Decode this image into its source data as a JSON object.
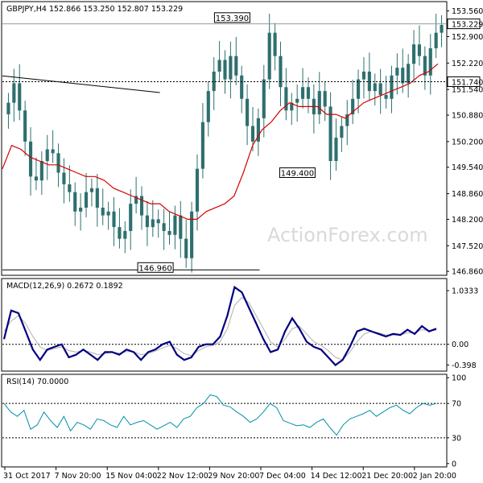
{
  "chart_data": [
    {
      "type": "candlestick",
      "panel": "price",
      "header": "GBPJPY,H4  152.866 153.250 152.807 153.229",
      "watermark": "ActionForex.com",
      "y_ticks": [
        "153.560",
        "152.900",
        "152.220",
        "151.540",
        "150.880",
        "150.200",
        "149.540",
        "148.860",
        "148.200",
        "147.520",
        "146.860"
      ],
      "y_tick_values": [
        153.56,
        152.9,
        152.22,
        151.54,
        150.88,
        150.2,
        149.54,
        148.86,
        148.2,
        147.52,
        146.86
      ],
      "ylim": [
        146.78,
        153.78
      ],
      "current_price": {
        "label": "153.229",
        "value": 153.229
      },
      "level_line": {
        "label": "151.740",
        "value": 151.74
      },
      "annotations": [
        {
          "label": "153.390",
          "value": 153.39,
          "x_frac": 0.518
        },
        {
          "label": "149.400",
          "value": 149.4,
          "x_frac": 0.665
        },
        {
          "label": "146.960",
          "value": 146.96,
          "x_frac": 0.345
        }
      ],
      "trendline": {
        "start": {
          "x_frac": 0.0,
          "value": 151.89
        },
        "end": {
          "x_frac": 0.355,
          "value": 151.46
        }
      },
      "support_line": {
        "value": 146.9,
        "x_frac_start": 0.0,
        "x_frac_end": 0.58
      },
      "close_series": [
        151.2,
        151.7,
        151.0,
        150.2,
        149.3,
        149.2,
        149.7,
        150.0,
        149.9,
        149.4,
        149.1,
        148.9,
        148.4,
        148.5,
        148.9,
        149.0,
        148.5,
        148.3,
        148.4,
        148.0,
        147.7,
        147.9,
        148.6,
        148.8,
        148.3,
        148.0,
        148.2,
        148.1,
        147.9,
        147.8,
        148.3,
        147.7,
        147.2,
        148.4,
        149.5,
        150.7,
        151.5,
        152.0,
        152.3,
        151.8,
        152.4,
        151.9,
        151.3,
        150.6,
        150.2,
        150.8,
        151.8,
        153.0,
        152.4,
        151.6,
        151.0,
        151.2,
        151.3,
        151.6,
        151.3,
        150.9,
        151.5,
        151.1,
        149.7,
        150.3,
        150.6,
        150.9,
        151.3,
        151.8,
        152.0,
        151.5,
        151.7,
        151.4,
        151.3,
        151.9,
        152.1,
        151.7,
        152.2,
        152.7,
        152.4,
        151.9,
        152.6,
        153.0,
        153.2
      ],
      "ma_series": [
        149.5,
        150.1,
        150.0,
        149.8,
        149.7,
        149.6,
        149.6,
        149.5,
        149.4,
        149.3,
        149.3,
        149.2,
        149.0,
        148.9,
        148.8,
        148.7,
        148.6,
        148.6,
        148.4,
        148.3,
        148.2,
        148.2,
        148.4,
        148.5,
        148.6,
        148.8,
        149.4,
        150.1,
        150.5,
        150.7,
        151.0,
        151.2,
        151.1,
        151.1,
        151.1,
        150.9,
        150.9,
        150.8,
        151.0,
        151.2,
        151.3,
        151.4,
        151.5,
        151.6,
        151.7,
        151.9,
        152.0,
        152.2
      ],
      "ma_color": "#d40000",
      "candle_color": "#2f6f6f"
    },
    {
      "type": "line",
      "panel": "macd",
      "header": "MACD(12,26,9) 0.2672 0.1892",
      "y_ticks": [
        "1.0333",
        "0.00",
        "-0.398"
      ],
      "y_tick_values": [
        1.0333,
        0.0,
        -0.398
      ],
      "ylim": [
        -0.5,
        1.25
      ],
      "series": [
        {
          "values": [
            0.1,
            0.65,
            0.6,
            0.25,
            -0.1,
            -0.3,
            -0.1,
            -0.05,
            0.0,
            -0.25,
            -0.2,
            -0.1,
            -0.2,
            -0.3,
            -0.15,
            -0.15,
            -0.2,
            -0.1,
            -0.15,
            -0.3,
            -0.15,
            -0.1,
            0.0,
            0.05,
            -0.2,
            -0.3,
            -0.25,
            -0.05,
            0.0,
            0.0,
            0.15,
            0.55,
            1.1,
            1.0,
            0.7,
            0.4,
            0.1,
            -0.15,
            -0.1,
            0.25,
            0.5,
            0.3,
            0.05,
            -0.05,
            -0.1,
            -0.25,
            -0.4,
            -0.3,
            -0.05,
            0.25,
            0.3,
            0.25,
            0.2,
            0.15,
            0.2,
            0.18,
            0.28,
            0.2,
            0.35,
            0.25,
            0.3
          ],
          "color": "#000080"
        },
        {
          "values": [
            0.25,
            0.45,
            0.55,
            0.4,
            0.15,
            -0.05,
            -0.12,
            -0.08,
            -0.05,
            -0.12,
            -0.15,
            -0.12,
            -0.15,
            -0.2,
            -0.18,
            -0.15,
            -0.17,
            -0.14,
            -0.14,
            -0.2,
            -0.18,
            -0.13,
            -0.07,
            -0.02,
            -0.08,
            -0.18,
            -0.22,
            -0.12,
            -0.05,
            -0.02,
            0.05,
            0.3,
            0.75,
            0.9,
            0.8,
            0.55,
            0.3,
            0.05,
            -0.05,
            0.1,
            0.3,
            0.35,
            0.2,
            0.05,
            -0.02,
            -0.12,
            -0.25,
            -0.3,
            -0.15,
            0.05,
            0.2,
            0.25,
            0.22,
            0.18,
            0.18,
            0.18,
            0.22,
            0.22,
            0.28,
            0.26,
            0.27
          ],
          "color": "#b0b0b0"
        }
      ]
    },
    {
      "type": "line",
      "panel": "rsi",
      "header": "RSI(14) 70.0000",
      "y_ticks": [
        "100",
        "70",
        "30",
        "0"
      ],
      "y_tick_values": [
        100,
        70,
        30,
        0
      ],
      "ylim": [
        -3,
        103
      ],
      "series": [
        {
          "values": [
            70,
            60,
            55,
            62,
            40,
            45,
            60,
            50,
            42,
            55,
            38,
            48,
            45,
            40,
            52,
            50,
            45,
            42,
            55,
            45,
            48,
            50,
            45,
            40,
            44,
            48,
            42,
            52,
            55,
            65,
            70,
            80,
            78,
            68,
            66,
            60,
            55,
            48,
            52,
            60,
            70,
            65,
            50,
            47,
            44,
            45,
            42,
            48,
            52,
            42,
            33,
            45,
            52,
            55,
            58,
            62,
            55,
            60,
            65,
            68,
            62,
            58,
            65,
            70,
            68,
            70
          ],
          "color": "#0090a8"
        }
      ]
    }
  ],
  "x_ticks": [
    "31 Oct 2017",
    "7 Nov 20:00",
    "15 Nov 04:00",
    "22 Nov 12:00",
    "29 Nov 20:00",
    "7 Dec 04:00",
    "14 Dec 12:00",
    "21 Dec 20:00",
    "2 Jan 20:00"
  ]
}
